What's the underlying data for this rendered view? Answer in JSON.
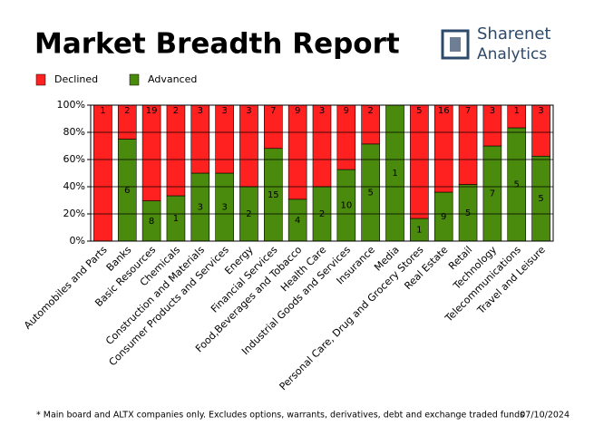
{
  "header": {
    "title": "Market Breadth Report",
    "logo_line1": "Sharenet",
    "logo_line2": "Analytics"
  },
  "chart_data": {
    "type": "bar",
    "stacked": "percent",
    "categories": [
      "Automobiles and Parts",
      "Banks",
      "Basic Resources",
      "Chemicals",
      "Construction and Materials",
      "Consumer Products and Services",
      "Energy",
      "Financial Services",
      "Food,Beverages and Tobacco",
      "Health Care",
      "Industrial Goods and Services",
      "Insurance",
      "Media",
      "Personal Care, Drug and Grocery Stores",
      "Real Estate",
      "Retail",
      "Technology",
      "Telecommunications",
      "Travel and Leisure"
    ],
    "series": [
      {
        "name": "Declined",
        "color": "#ff2020",
        "values": [
          1,
          2,
          19,
          2,
          3,
          3,
          3,
          7,
          9,
          3,
          9,
          2,
          0,
          5,
          16,
          7,
          3,
          1,
          3
        ]
      },
      {
        "name": "Advanced",
        "color": "#4a8a0c",
        "values": [
          0,
          6,
          8,
          1,
          3,
          3,
          2,
          15,
          4,
          2,
          10,
          5,
          1,
          1,
          9,
          5,
          7,
          5,
          5
        ]
      }
    ],
    "ylim": [
      0,
      100
    ],
    "yticks": [
      {
        "value": 0,
        "label": "0%"
      },
      {
        "value": 20,
        "label": "20%"
      },
      {
        "value": 40,
        "label": "40%"
      },
      {
        "value": 60,
        "label": "60%"
      },
      {
        "value": 80,
        "label": "80%"
      },
      {
        "value": 100,
        "label": "100%"
      }
    ],
    "grid": true,
    "legend": "top-left"
  },
  "footer": {
    "note": "* Main board and ALTX companies only. Excludes options, warrants, derivatives, debt and exchange traded funds",
    "date": "07/10/2024"
  }
}
